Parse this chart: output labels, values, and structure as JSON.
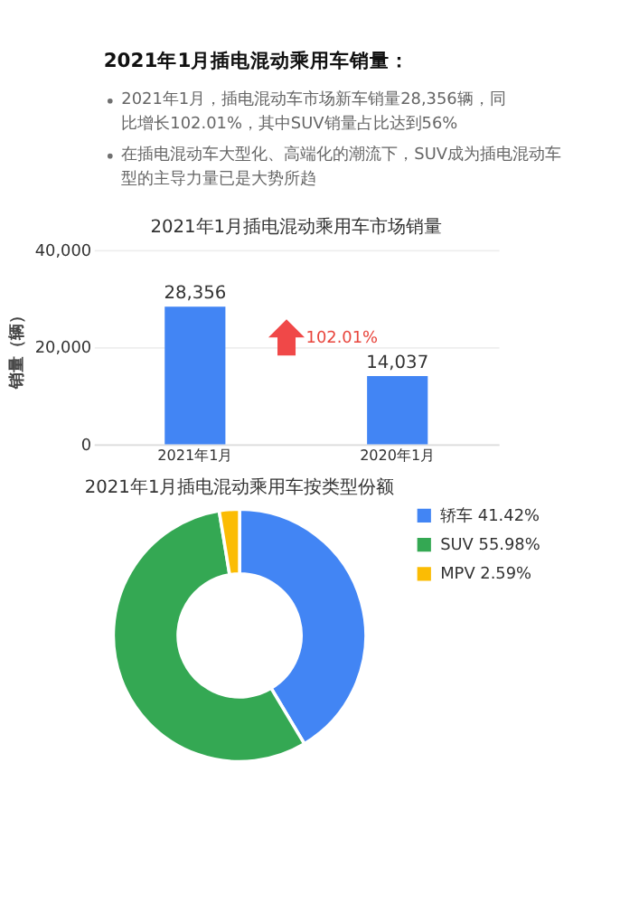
{
  "chart_data": [
    {
      "type": "other",
      "title": "2021年1月插电混动乘用车销量：",
      "annotations": [
        "2021年1月，插电混动车市场新车销量28,356辆，同比增长102.01%，其中SUV销量占比达到56%",
        "在插电混动车大型化、高端化的潮流下，SUV成为插电混动车型的主导力量已是大势所趋"
      ]
    },
    {
      "type": "bar",
      "title": "2021年1月插电混动乘用车市场销量",
      "ylabel": "销量（辆）",
      "categories": [
        "2021年1月",
        "2020年1月"
      ],
      "values": [
        28356,
        14037
      ],
      "color": "#4285f4",
      "ylim": [
        0,
        40000
      ],
      "yticks": [
        {
          "value": 0,
          "label": "0"
        },
        {
          "value": 20000,
          "label": "20,000"
        },
        {
          "value": 40000,
          "label": "40,000"
        }
      ],
      "grid": "y",
      "value_labels": [
        "28,356",
        "14,037"
      ],
      "annotations": [
        "102.01%"
      ]
    },
    {
      "type": "donut",
      "title": "2021年1月插电混动乘用车按类型份额",
      "categories": [
        "轿车",
        "SUV",
        "MPV"
      ],
      "values": [
        41.42,
        55.98,
        2.59
      ],
      "colors": [
        "#4285f4",
        "#34a853",
        "#fbbc04"
      ],
      "legend": "right",
      "value_labels": [
        "41.42%",
        "55.98%",
        "2.59%"
      ]
    }
  ]
}
